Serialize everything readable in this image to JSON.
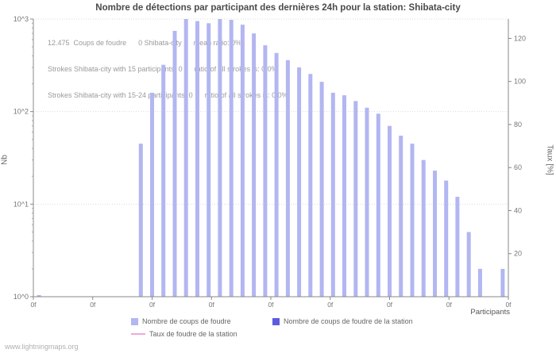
{
  "title": "Nombre de détections par participant des dernières 24h pour la station: Shibata-city",
  "annotations": {
    "line1": "12.475  Coups de foudre      0 Shibata-city      mean ratio: 0%",
    "line2": "Strokes Shibata-city with 15 participants: 0      ratio of all strokes is: 0,0%",
    "line3": "Strokes Shibata-city with 15-24 participants: 0      ratio of all strokes is: 0,0%"
  },
  "axes": {
    "y_left_label": "Nb",
    "y_left_ticks": [
      "10^0",
      "10^1",
      "10^2",
      "10^3"
    ],
    "y_right_label": "Taux [%]",
    "y_right_ticks": [
      20,
      40,
      60,
      80,
      100,
      120
    ],
    "x_label": "Participants",
    "x_tick_label": "0f",
    "x_tick_count": 9
  },
  "legend": [
    {
      "type": "square",
      "color": "#b2b6f1",
      "label": "Nombre de coups de foudre"
    },
    {
      "type": "square",
      "color": "#5c5ce0",
      "label": "Nombre de coups de foudre de la station"
    },
    {
      "type": "line",
      "color": "#f0a8d8",
      "label": "Taux de foudre de la station"
    }
  ],
  "watermark": "www.lightningmaps.org",
  "chart_data": {
    "type": "bar",
    "title": "Nombre de détections par participant des dernières 24h pour la station: Shibata-city",
    "xlabel": "Participants",
    "ylabel_left": "Nb",
    "ylabel_right": "Taux [%]",
    "y_scale": "log",
    "ylim": [
      1,
      1000
    ],
    "right_ylim": [
      0,
      129
    ],
    "total_strokes": 12475,
    "station_strokes": 0,
    "station_ratio_percent": 0,
    "mean_ratio_percent": 0,
    "values": [
      1,
      0,
      0,
      0,
      0,
      0,
      0,
      0,
      0,
      45,
      160,
      320,
      745,
      1000,
      950,
      900,
      1000,
      980,
      870,
      700,
      520,
      430,
      360,
      300,
      255,
      210,
      160,
      150,
      130,
      110,
      95,
      70,
      55,
      45,
      30,
      23,
      18,
      12,
      5,
      2,
      0,
      2
    ],
    "bar_color": "#b2b6f1",
    "station_bar_color": "#5c5ce0",
    "rate_line_color": "#f0a8d8",
    "grid": "dotted horizontal at decades",
    "legend_position": "bottom"
  }
}
